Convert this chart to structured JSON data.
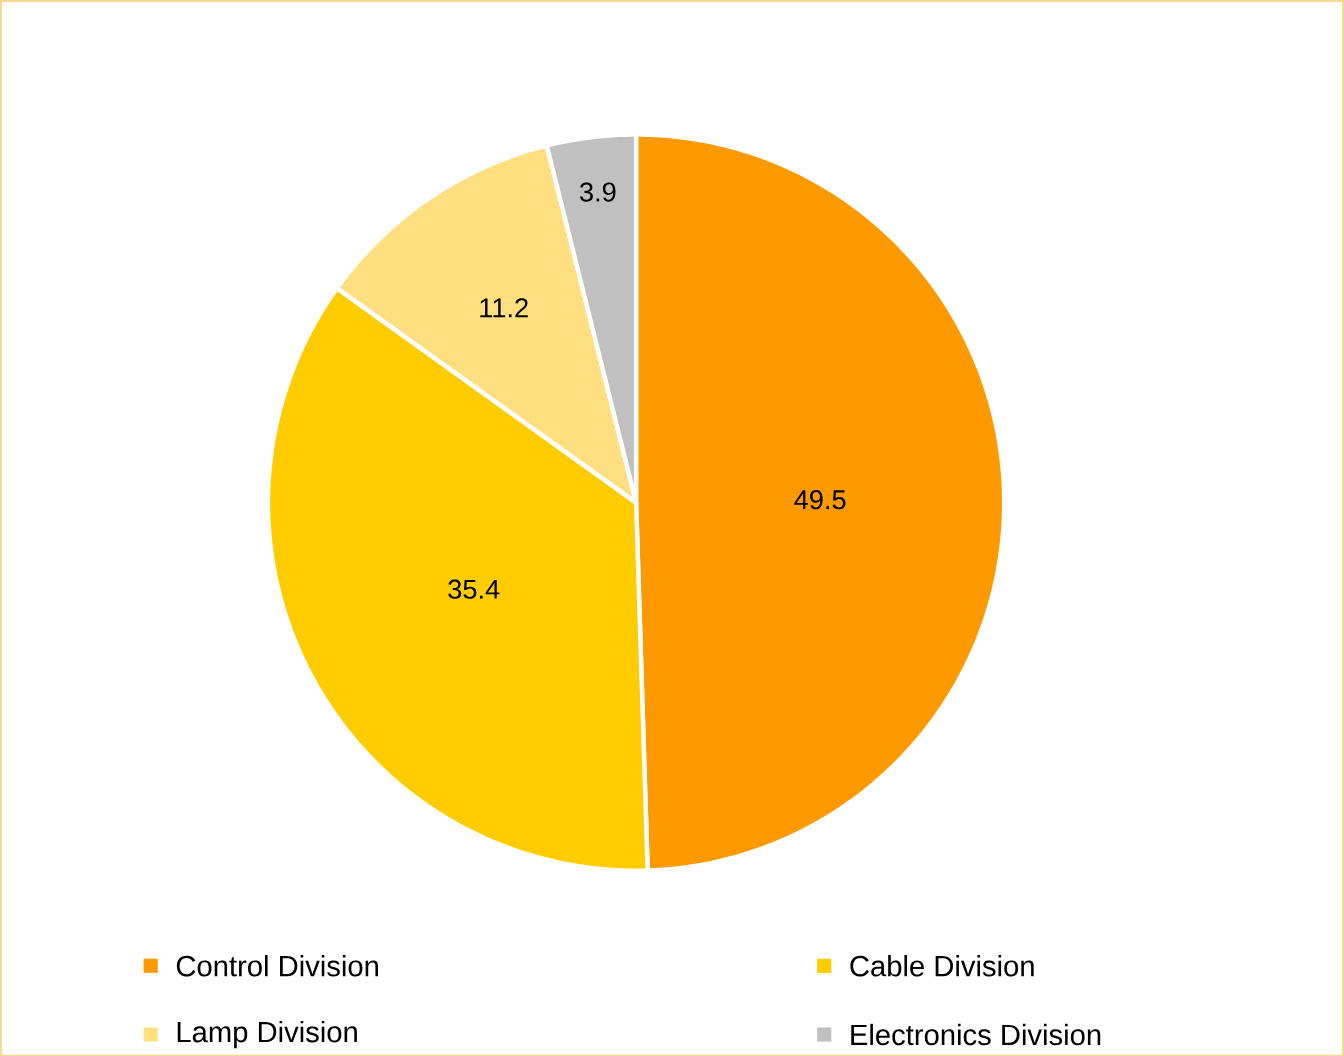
{
  "chart_data": {
    "type": "pie",
    "categories": [
      "Control Division",
      "Cable Division",
      "Lamp Division",
      "Electronics Division"
    ],
    "values": [
      49.5,
      35.4,
      11.2,
      3.9
    ],
    "colors": [
      "#ff9900",
      "#ffcc00",
      "#ffdf80",
      "#c0c0c0"
    ],
    "data_labels": true,
    "legend": "bottom"
  }
}
